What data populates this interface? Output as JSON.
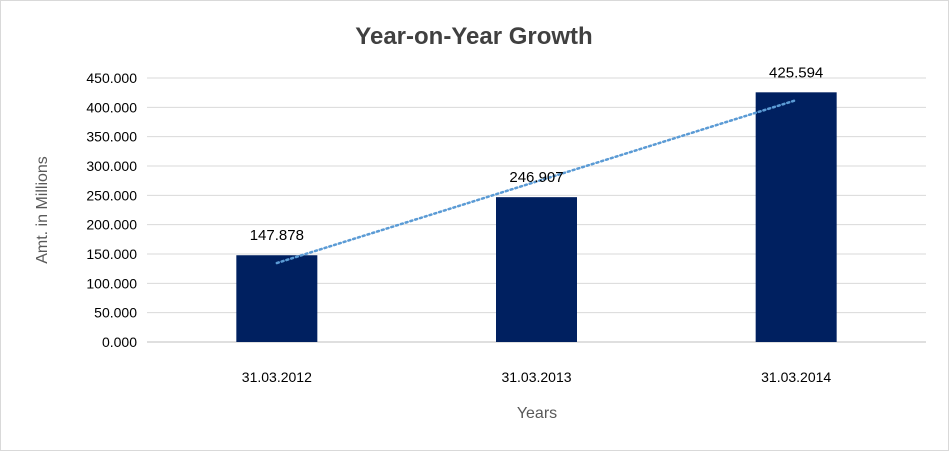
{
  "chart_data": {
    "type": "bar",
    "title": "Year-on-Year Growth",
    "xlabel": "Years",
    "ylabel": "Amt. in Millions",
    "categories": [
      "31.03.2012",
      "31.03.2013",
      "31.03.2014"
    ],
    "values": [
      147.878,
      246.907,
      425.594
    ],
    "data_labels": [
      "147.878",
      "246.907",
      "425.594"
    ],
    "ylim": [
      0,
      450
    ],
    "yticks": [
      0,
      50,
      100,
      150,
      200,
      250,
      300,
      350,
      400,
      450
    ],
    "ytick_labels": [
      "0.000",
      "50.000",
      "100.000",
      "150.000",
      "200.000",
      "250.000",
      "300.000",
      "350.000",
      "400.000",
      "450.000"
    ],
    "grid": true,
    "trendline": {
      "type": "linear",
      "style": "dotted"
    },
    "colors": {
      "bar": "#002060",
      "trendline": "#5b9bd5"
    }
  }
}
